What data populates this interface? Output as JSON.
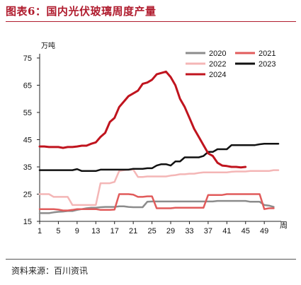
{
  "header": {
    "title": "图表6：国内光伏玻璃周度产量"
  },
  "footer": {
    "source": "资料来源：百川资讯"
  },
  "chart_data": {
    "type": "line",
    "title": "图表6：国内光伏玻璃周度产量",
    "ylabel": "万吨",
    "xlabel": "周",
    "ylim": [
      15,
      75
    ],
    "yticks": [
      15,
      25,
      35,
      45,
      55,
      65,
      75
    ],
    "xlim": [
      1,
      52
    ],
    "xticks": [
      1,
      5,
      9,
      13,
      17,
      21,
      25,
      29,
      33,
      37,
      41,
      45,
      49
    ],
    "grid": false,
    "legend_position": "top-right",
    "series": [
      {
        "name": "2020",
        "color": "#8c8c8c",
        "width": 2.5,
        "x": [
          1,
          2,
          3,
          4,
          5,
          6,
          7,
          8,
          9,
          10,
          11,
          12,
          13,
          14,
          15,
          16,
          17,
          18,
          19,
          20,
          21,
          22,
          23,
          24,
          25,
          26,
          27,
          28,
          29,
          30,
          31,
          32,
          33,
          34,
          35,
          36,
          37,
          38,
          39,
          40,
          41,
          42,
          43,
          44,
          45,
          46,
          47,
          48,
          49,
          50,
          51
        ],
        "y": [
          18,
          18,
          18,
          18.3,
          18.5,
          18.6,
          18.8,
          18.8,
          19.2,
          19.5,
          19.8,
          20,
          20,
          20.2,
          20.3,
          20.3,
          20.3,
          20.5,
          20.5,
          20.3,
          20.2,
          20.2,
          20.2,
          22.2,
          22.3,
          22.3,
          22.3,
          22.3,
          22.3,
          22.3,
          22.3,
          22.3,
          22.3,
          22.3,
          22.3,
          22.3,
          22.3,
          22.3,
          22.5,
          22.5,
          22.5,
          22.5,
          22.5,
          22.5,
          22.5,
          22.2,
          22.2,
          22.2,
          21,
          20.8,
          20.3
        ]
      },
      {
        "name": "2021",
        "color": "#e15b5b",
        "width": 2.5,
        "x": [
          1,
          2,
          3,
          4,
          5,
          6,
          7,
          8,
          9,
          10,
          11,
          12,
          13,
          14,
          15,
          16,
          17,
          18,
          19,
          20,
          21,
          22,
          23,
          24,
          25,
          26,
          27,
          28,
          29,
          30,
          31,
          32,
          33,
          34,
          35,
          36,
          37,
          38,
          39,
          40,
          41,
          42,
          43,
          44,
          45,
          46,
          47,
          48,
          49,
          50,
          51
        ],
        "y": [
          19.5,
          19.5,
          19.5,
          19.5,
          19.3,
          19,
          19,
          19.2,
          19.5,
          19.5,
          19.5,
          19.5,
          19.5,
          19.2,
          19.2,
          19.2,
          19.3,
          25,
          25,
          25,
          24.8,
          24,
          24,
          24.2,
          24.2,
          19.8,
          19.8,
          19.8,
          19.8,
          20,
          20,
          20,
          20,
          20,
          20,
          20,
          24.7,
          24.7,
          24.7,
          24.7,
          25,
          25,
          25,
          25,
          25,
          25,
          25,
          25,
          19.5,
          19.8,
          19.8
        ]
      },
      {
        "name": "2022",
        "color": "#f4b6b6",
        "width": 2.5,
        "x": [
          1,
          2,
          3,
          4,
          5,
          6,
          7,
          8,
          9,
          10,
          11,
          12,
          13,
          14,
          15,
          16,
          17,
          18,
          19,
          20,
          21,
          22,
          23,
          24,
          25,
          26,
          27,
          28,
          29,
          30,
          31,
          32,
          33,
          34,
          35,
          36,
          37,
          38,
          39,
          40,
          41,
          42,
          43,
          44,
          45,
          46,
          47,
          48,
          49,
          50,
          51,
          52
        ],
        "y": [
          25,
          25,
          25,
          24,
          24,
          24,
          24,
          21,
          21,
          21,
          21,
          21,
          21,
          29,
          29,
          29,
          29.5,
          33.5,
          33.8,
          34,
          34,
          31.3,
          31.3,
          31.5,
          31.5,
          31.5,
          31.5,
          31.5,
          31.8,
          32,
          32.3,
          32.3,
          32.5,
          32.5,
          32.8,
          33,
          33,
          33,
          33,
          33,
          33,
          33.2,
          33.3,
          33.3,
          33.3,
          33.5,
          33.5,
          33.5,
          33.5,
          33.5,
          33.8,
          33.8
        ]
      },
      {
        "name": "2023",
        "color": "#111111",
        "width": 2.5,
        "x": [
          1,
          2,
          3,
          4,
          5,
          6,
          7,
          8,
          9,
          10,
          11,
          12,
          13,
          14,
          15,
          16,
          17,
          18,
          19,
          20,
          21,
          22,
          23,
          24,
          25,
          26,
          27,
          28,
          29,
          30,
          31,
          32,
          33,
          34,
          35,
          36,
          37,
          38,
          39,
          40,
          41,
          42,
          43,
          44,
          45,
          46,
          47,
          48,
          49,
          50,
          51,
          52
        ],
        "y": [
          33.8,
          33.8,
          33.8,
          33.8,
          33.8,
          33.8,
          33.8,
          33.8,
          34.2,
          33.5,
          33.5,
          33.5,
          33.5,
          34,
          34,
          34,
          34,
          34,
          34,
          34,
          34.3,
          34.3,
          34.3,
          34.5,
          34.5,
          35.5,
          36,
          36,
          35.5,
          37,
          37,
          38.5,
          38.5,
          38.5,
          38.5,
          39,
          40.5,
          40.5,
          41.5,
          41.5,
          41.5,
          43,
          43,
          43,
          43,
          43,
          43,
          43.3,
          43.5,
          43.5,
          43.5,
          43.5
        ]
      },
      {
        "name": "2024",
        "color": "#c0141e",
        "width": 3,
        "x": [
          1,
          2,
          3,
          4,
          5,
          6,
          7,
          8,
          9,
          10,
          11,
          12,
          13,
          14,
          15,
          16,
          17,
          18,
          19,
          20,
          21,
          22,
          23,
          24,
          25,
          26,
          27,
          28,
          29,
          30,
          31,
          32,
          33,
          34,
          35,
          36,
          37,
          38,
          39,
          40,
          41,
          42,
          43,
          44,
          45
        ],
        "y": [
          42.5,
          42.5,
          42.3,
          42.3,
          42.3,
          42,
          42.3,
          42.3,
          42.5,
          42.8,
          42.8,
          43.5,
          44,
          46,
          47.5,
          51.5,
          53,
          57,
          59,
          61,
          62,
          63,
          65.5,
          66,
          67,
          69,
          69.5,
          70,
          68,
          65,
          60,
          57,
          53,
          49,
          46,
          43,
          40,
          39,
          36.5,
          35.5,
          35.3,
          35,
          35,
          34.8,
          35
        ]
      }
    ]
  }
}
